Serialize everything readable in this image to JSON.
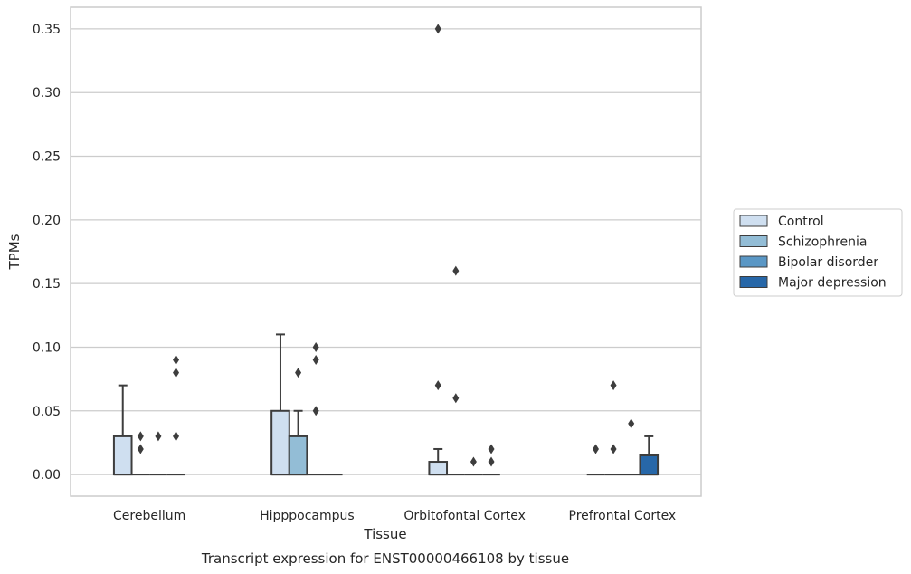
{
  "chart_data": {
    "type": "box",
    "title": "",
    "caption": "Transcript expression for ENST00000466108 by tissue",
    "xlabel": "Tissue",
    "ylabel": "TPMs",
    "ylim": [
      -0.017,
      0.367
    ],
    "yticks": [
      0.0,
      0.05,
      0.1,
      0.15,
      0.2,
      0.25,
      0.3,
      0.35
    ],
    "ytick_labels": [
      "0.00",
      "0.05",
      "0.10",
      "0.15",
      "0.20",
      "0.25",
      "0.30",
      "0.35"
    ],
    "grid": "horizontal",
    "legend_position": "right",
    "categories": [
      "Cerebellum",
      "Hipppocampus",
      "Orbitofontal Cortex",
      "Prefrontal Cortex"
    ],
    "series": [
      {
        "name": "Control",
        "color": "#cfdff0",
        "boxes": [
          {
            "q1": 0.0,
            "median": 0.0,
            "q3": 0.03,
            "whisker_low": 0.0,
            "whisker_high": 0.07,
            "outliers": []
          },
          {
            "q1": 0.0,
            "median": 0.0,
            "q3": 0.05,
            "whisker_low": 0.0,
            "whisker_high": 0.11,
            "outliers": []
          },
          {
            "q1": 0.0,
            "median": 0.0,
            "q3": 0.01,
            "whisker_low": 0.0,
            "whisker_high": 0.02,
            "outliers": [
              0.07,
              0.35
            ]
          },
          {
            "q1": 0.0,
            "median": 0.0,
            "q3": 0.0,
            "whisker_low": 0.0,
            "whisker_high": 0.0,
            "outliers": [
              0.02
            ]
          }
        ]
      },
      {
        "name": "Schizophrenia",
        "color": "#93bdd6",
        "boxes": [
          {
            "q1": 0.0,
            "median": 0.0,
            "q3": 0.0,
            "whisker_low": 0.0,
            "whisker_high": 0.0,
            "outliers": [
              0.02,
              0.03
            ]
          },
          {
            "q1": 0.0,
            "median": 0.0,
            "q3": 0.03,
            "whisker_low": 0.0,
            "whisker_high": 0.05,
            "outliers": [
              0.08
            ]
          },
          {
            "q1": 0.0,
            "median": 0.0,
            "q3": 0.0,
            "whisker_low": 0.0,
            "whisker_high": 0.0,
            "outliers": [
              0.06,
              0.16
            ]
          },
          {
            "q1": 0.0,
            "median": 0.0,
            "q3": 0.0,
            "whisker_low": 0.0,
            "whisker_high": 0.0,
            "outliers": [
              0.02,
              0.07
            ]
          }
        ]
      },
      {
        "name": "Bipolar disorder",
        "color": "#5a97c5",
        "boxes": [
          {
            "q1": 0.0,
            "median": 0.0,
            "q3": 0.0,
            "whisker_low": 0.0,
            "whisker_high": 0.0,
            "outliers": [
              0.03
            ]
          },
          {
            "q1": 0.0,
            "median": 0.0,
            "q3": 0.0,
            "whisker_low": 0.0,
            "whisker_high": 0.0,
            "outliers": [
              0.05,
              0.09,
              0.1
            ]
          },
          {
            "q1": 0.0,
            "median": 0.0,
            "q3": 0.0,
            "whisker_low": 0.0,
            "whisker_high": 0.0,
            "outliers": [
              0.01
            ]
          },
          {
            "q1": 0.0,
            "median": 0.0,
            "q3": 0.0,
            "whisker_low": 0.0,
            "whisker_high": 0.0,
            "outliers": [
              0.04
            ]
          }
        ]
      },
      {
        "name": "Major depression",
        "color": "#2767a8",
        "boxes": [
          {
            "q1": 0.0,
            "median": 0.0,
            "q3": 0.0,
            "whisker_low": 0.0,
            "whisker_high": 0.0,
            "outliers": [
              0.03,
              0.08,
              0.09
            ]
          },
          {
            "q1": 0.0,
            "median": 0.0,
            "q3": 0.0,
            "whisker_low": 0.0,
            "whisker_high": 0.0,
            "outliers": []
          },
          {
            "q1": 0.0,
            "median": 0.0,
            "q3": 0.0,
            "whisker_low": 0.0,
            "whisker_high": 0.0,
            "outliers": [
              0.01,
              0.02
            ]
          },
          {
            "q1": 0.0,
            "median": 0.0,
            "q3": 0.015,
            "whisker_low": 0.0,
            "whisker_high": 0.03,
            "outliers": []
          }
        ]
      }
    ]
  }
}
